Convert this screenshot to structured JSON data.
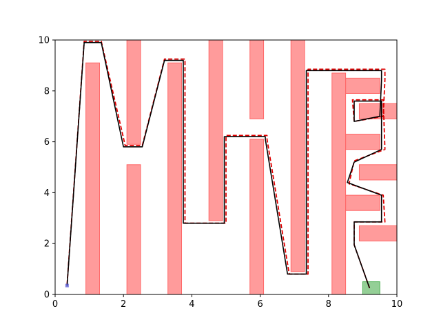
{
  "chart_data": {
    "type": "line",
    "title": "",
    "xlabel": "",
    "ylabel": "",
    "xlim": [
      0,
      10
    ],
    "ylim": [
      0,
      10
    ],
    "grid": false,
    "x_ticks": [
      0,
      2,
      4,
      6,
      8,
      10
    ],
    "y_ticks": [
      0,
      2,
      4,
      6,
      8,
      10
    ],
    "colors": {
      "obstacle": "#ff6666",
      "goal": "#4caf50",
      "start": "#4a4ad0",
      "path_solid": "#000000",
      "path_dashed": "#e00000"
    },
    "obstacles": [
      {
        "x": 0.9,
        "y": 0.0,
        "w": 0.4,
        "h": 9.1
      },
      {
        "x": 2.1,
        "y": 0.0,
        "w": 0.4,
        "h": 5.1
      },
      {
        "x": 2.1,
        "y": 5.9,
        "w": 0.4,
        "h": 4.1
      },
      {
        "x": 3.3,
        "y": 0.0,
        "w": 0.4,
        "h": 9.1
      },
      {
        "x": 4.5,
        "y": 2.9,
        "w": 0.4,
        "h": 7.1
      },
      {
        "x": 5.7,
        "y": 0.0,
        "w": 0.4,
        "h": 6.1
      },
      {
        "x": 5.7,
        "y": 6.9,
        "w": 0.4,
        "h": 3.1
      },
      {
        "x": 6.9,
        "y": 0.9,
        "w": 0.4,
        "h": 9.1
      },
      {
        "x": 8.1,
        "y": 0.0,
        "w": 0.4,
        "h": 8.7
      },
      {
        "x": 8.5,
        "y": 7.9,
        "w": 1.0,
        "h": 0.6
      },
      {
        "x": 8.9,
        "y": 6.9,
        "w": 1.1,
        "h": 0.6
      },
      {
        "x": 8.5,
        "y": 5.7,
        "w": 1.0,
        "h": 0.6
      },
      {
        "x": 8.9,
        "y": 4.5,
        "w": 1.1,
        "h": 0.6
      },
      {
        "x": 8.5,
        "y": 3.3,
        "w": 1.0,
        "h": 0.6
      },
      {
        "x": 8.9,
        "y": 2.1,
        "w": 1.1,
        "h": 0.6
      }
    ],
    "goal_region": {
      "x": 9.0,
      "y": 0.0,
      "w": 0.5,
      "h": 0.5
    },
    "start_point": {
      "x": 0.35,
      "y": 0.35
    },
    "series": [
      {
        "style": "dashed",
        "x": [
          0.35,
          0.85,
          1.35,
          2.05,
          2.55,
          3.2,
          3.8,
          3.8,
          5.0,
          5.0,
          6.2,
          6.2,
          6.85,
          7.4,
          7.4,
          9.65,
          9.65,
          9.6,
          8.75,
          8.7,
          9.6,
          9.65,
          8.75,
          8.6,
          9.6,
          9.65,
          8.75,
          8.75,
          9.2
        ],
        "y": [
          0.4,
          9.95,
          9.95,
          5.85,
          5.85,
          9.25,
          9.25,
          2.8,
          2.8,
          6.25,
          6.25,
          6.1,
          0.8,
          0.8,
          8.85,
          8.85,
          8.45,
          7.0,
          6.8,
          7.65,
          7.65,
          5.7,
          5.25,
          4.35,
          3.9,
          2.85,
          2.85,
          1.95,
          0.25
        ]
      },
      {
        "style": "solid",
        "x": [
          0.35,
          0.85,
          1.35,
          2.0,
          2.55,
          3.2,
          3.75,
          3.75,
          4.95,
          4.95,
          6.15,
          6.15,
          6.8,
          7.35,
          7.35,
          9.55,
          9.55,
          9.5,
          8.75,
          8.75,
          9.55,
          9.55,
          8.75,
          8.55,
          9.55,
          9.55,
          8.75,
          8.75,
          9.2
        ],
        "y": [
          0.35,
          9.9,
          9.9,
          5.8,
          5.8,
          9.2,
          9.2,
          2.8,
          2.8,
          6.2,
          6.2,
          6.1,
          0.8,
          0.8,
          8.8,
          8.8,
          8.4,
          7.0,
          6.8,
          7.6,
          7.6,
          5.7,
          5.2,
          4.4,
          3.9,
          2.85,
          2.85,
          1.95,
          0.25
        ]
      }
    ]
  }
}
